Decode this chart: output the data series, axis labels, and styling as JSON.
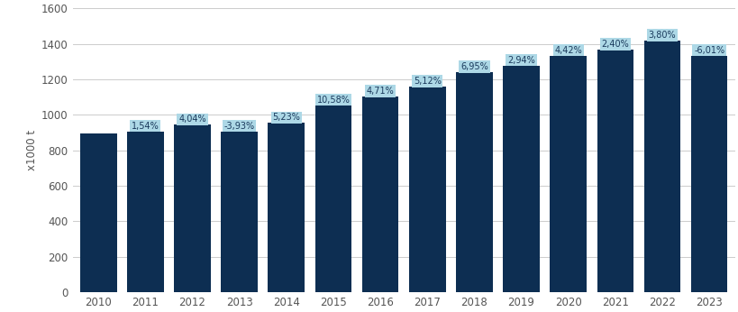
{
  "years": [
    2010,
    2011,
    2012,
    2013,
    2014,
    2015,
    2016,
    2017,
    2018,
    2019,
    2020,
    2021,
    2022,
    2023
  ],
  "values": [
    893,
    907,
    943,
    906,
    953,
    1054,
    1103,
    1160,
    1241,
    1277,
    1334,
    1366,
    1418,
    1333
  ],
  "labels": [
    "",
    "1,54%",
    "4,04%",
    "-3,93%",
    "5,23%",
    "10,58%",
    "4,71%",
    "5,12%",
    "6,95%",
    "2,94%",
    "4,42%",
    "2,40%",
    "3,80%",
    "-6,01%"
  ],
  "bar_color": "#0d2e52",
  "label_bg_color": "#add8e6",
  "label_text_color": "#1a3a5c",
  "background_color": "#ffffff",
  "ylabel": "x1000 t",
  "ylim": [
    0,
    1600
  ],
  "yticks": [
    0,
    200,
    400,
    600,
    800,
    1000,
    1200,
    1400,
    1600
  ],
  "grid_color": "#cccccc",
  "label_fontsize": 7.0,
  "axis_fontsize": 8.5,
  "bar_width": 0.78
}
